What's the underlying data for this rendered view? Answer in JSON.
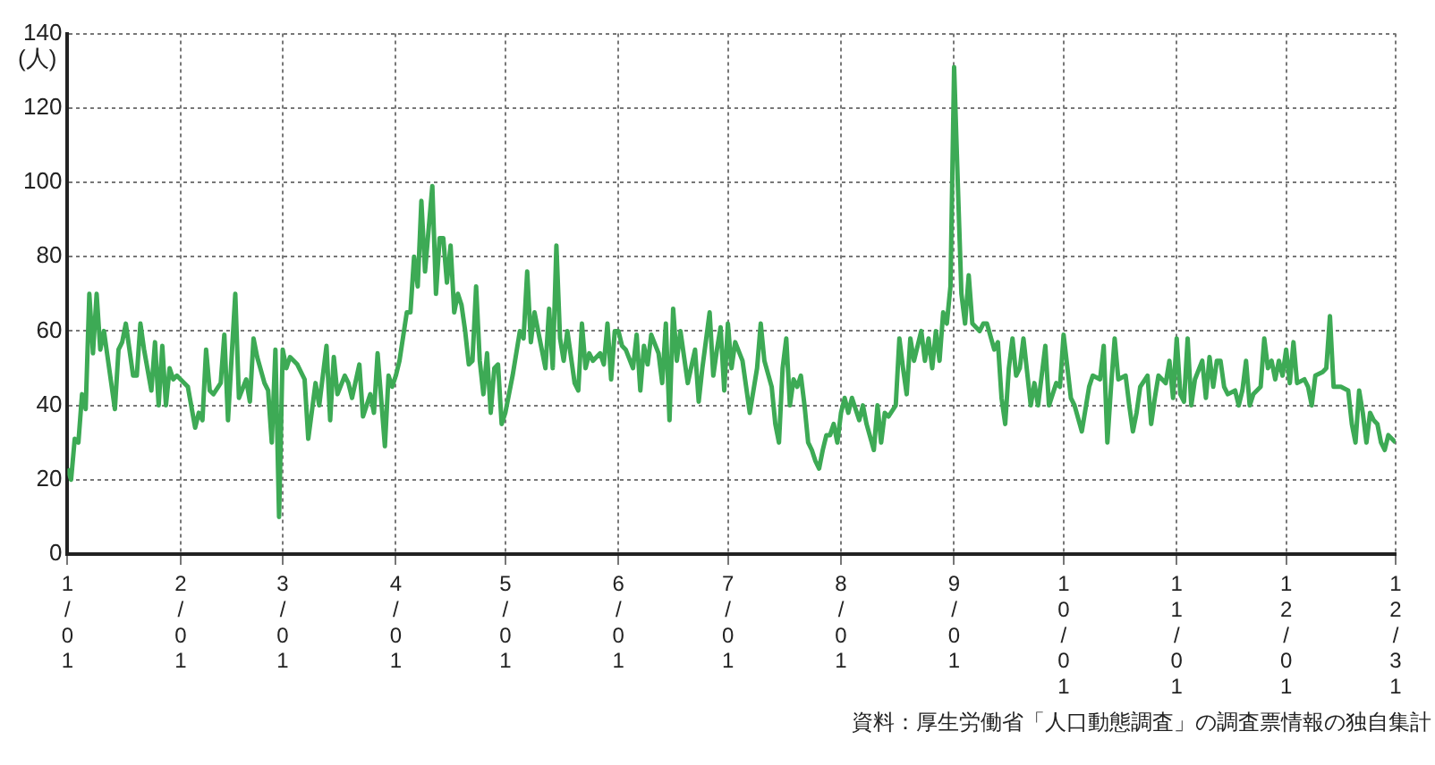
{
  "chart_data": {
    "type": "line",
    "ylabel": "(人)",
    "annotations": [
      "資料：厚生労働省「人口動態調査」の調査票情報の独自集計"
    ],
    "xlim": [
      "--01-01",
      "--12-31"
    ],
    "xticks": [
      {
        "value": "--01-01",
        "label": "1/01"
      },
      {
        "value": "--02-01",
        "label": "2/01"
      },
      {
        "value": "--03-01",
        "label": "3/01"
      },
      {
        "value": "--04-01",
        "label": "4/01"
      },
      {
        "value": "--05-01",
        "label": "5/01"
      },
      {
        "value": "--06-01",
        "label": "6/01"
      },
      {
        "value": "--07-01",
        "label": "7/01"
      },
      {
        "value": "--08-01",
        "label": "8/01"
      },
      {
        "value": "--09-01",
        "label": "9/01"
      },
      {
        "value": "--10-01",
        "label": "10/01"
      },
      {
        "value": "--11-01",
        "label": "11/01"
      },
      {
        "value": "--12-01",
        "label": "12/01"
      },
      {
        "value": "--12-31",
        "label": "12/31"
      }
    ],
    "ylim": [
      0,
      140
    ],
    "yticks": [
      0,
      20,
      40,
      60,
      80,
      100,
      120,
      140
    ],
    "grid": true,
    "legend": false,
    "marker": "none",
    "line_style": "solid",
    "series": [
      {
        "color": "#3daa55",
        "x": [
          "--01-01",
          "--01-02",
          "--01-03",
          "--01-04",
          "--01-05",
          "--01-06",
          "--01-07",
          "--01-08",
          "--01-09",
          "--01-10",
          "--01-11",
          "--01-12",
          "--01-14",
          "--01-15",
          "--01-16",
          "--01-17",
          "--01-19",
          "--01-20",
          "--01-21",
          "--01-22",
          "--01-24",
          "--01-25",
          "--01-26",
          "--01-27",
          "--01-28",
          "--01-29",
          "--01-30",
          "--01-31",
          "--02-01",
          "--02-03",
          "--02-05",
          "--02-06",
          "--02-07",
          "--02-08",
          "--02-09",
          "--02-10",
          "--02-12",
          "--02-13",
          "--02-14",
          "--02-16",
          "--02-17",
          "--02-19",
          "--02-20",
          "--02-21",
          "--02-22",
          "--02-24",
          "--02-25",
          "--02-26",
          "--02-27",
          "--02-28",
          "--03-01",
          "--03-02",
          "--03-03",
          "--03-05",
          "--03-07",
          "--03-08",
          "--03-10",
          "--03-11",
          "--03-13",
          "--03-14",
          "--03-15",
          "--03-16",
          "--03-18",
          "--03-19",
          "--03-20",
          "--03-22",
          "--03-23",
          "--03-25",
          "--03-26",
          "--03-27",
          "--03-29",
          "--03-30",
          "--03-31",
          "--04-01",
          "--04-02",
          "--04-04",
          "--04-05",
          "--04-06",
          "--04-07",
          "--04-08",
          "--04-09",
          "--04-11",
          "--04-12",
          "--04-13",
          "--04-14",
          "--04-15",
          "--04-16",
          "--04-17",
          "--04-18",
          "--04-19",
          "--04-20",
          "--04-21",
          "--04-22",
          "--04-23",
          "--04-24",
          "--04-25",
          "--04-26",
          "--04-27",
          "--04-28",
          "--04-29",
          "--04-30",
          "--05-01",
          "--05-03",
          "--05-05",
          "--05-06",
          "--05-07",
          "--05-08",
          "--05-09",
          "--05-10",
          "--05-12",
          "--05-13",
          "--05-14",
          "--05-15",
          "--05-16",
          "--05-17",
          "--05-18",
          "--05-20",
          "--05-21",
          "--05-22",
          "--05-23",
          "--05-24",
          "--05-25",
          "--05-27",
          "--05-28",
          "--05-29",
          "--05-30",
          "--05-31",
          "--06-01",
          "--06-02",
          "--06-03",
          "--06-05",
          "--06-06",
          "--06-07",
          "--06-08",
          "--06-09",
          "--06-10",
          "--06-12",
          "--06-13",
          "--06-14",
          "--06-15",
          "--06-16",
          "--06-17",
          "--06-18",
          "--06-19",
          "--06-20",
          "--06-22",
          "--06-23",
          "--06-24",
          "--06-26",
          "--06-27",
          "--06-28",
          "--06-29",
          "--06-30",
          "--07-01",
          "--07-02",
          "--07-03",
          "--07-05",
          "--07-06",
          "--07-07",
          "--07-09",
          "--07-10",
          "--07-11",
          "--07-13",
          "--07-14",
          "--07-15",
          "--07-16",
          "--07-17",
          "--07-18",
          "--07-19",
          "--07-20",
          "--07-21",
          "--07-22",
          "--07-23",
          "--07-24",
          "--07-25",
          "--07-26",
          "--07-27",
          "--07-28",
          "--07-29",
          "--07-30",
          "--07-31",
          "--08-01",
          "--08-02",
          "--08-03",
          "--08-04",
          "--08-06",
          "--08-07",
          "--08-08",
          "--08-10",
          "--08-11",
          "--08-12",
          "--08-13",
          "--08-14",
          "--08-16",
          "--08-17",
          "--08-18",
          "--08-19",
          "--08-20",
          "--08-21",
          "--08-23",
          "--08-24",
          "--08-25",
          "--08-26",
          "--08-27",
          "--08-28",
          "--08-29",
          "--08-30",
          "--08-31",
          "--09-01",
          "--09-02",
          "--09-03",
          "--09-04",
          "--09-05",
          "--09-06",
          "--09-08",
          "--09-09",
          "--09-10",
          "--09-12",
          "--09-13",
          "--09-14",
          "--09-15",
          "--09-16",
          "--09-17",
          "--09-18",
          "--09-19",
          "--09-20",
          "--09-22",
          "--09-23",
          "--09-24",
          "--09-25",
          "--09-26",
          "--09-27",
          "--09-29",
          "--09-30",
          "--10-01",
          "--10-03",
          "--10-04",
          "--10-06",
          "--10-08",
          "--10-09",
          "--10-11",
          "--10-12",
          "--10-13",
          "--10-14",
          "--10-15",
          "--10-16",
          "--10-18",
          "--10-19",
          "--10-20",
          "--10-21",
          "--10-22",
          "--10-24",
          "--10-25",
          "--10-26",
          "--10-27",
          "--10-29",
          "--10-30",
          "--10-31",
          "--11-01",
          "--11-02",
          "--11-03",
          "--11-04",
          "--11-05",
          "--11-06",
          "--11-08",
          "--11-09",
          "--11-10",
          "--11-11",
          "--11-12",
          "--11-13",
          "--11-14",
          "--11-15",
          "--11-17",
          "--11-18",
          "--11-19",
          "--11-20",
          "--11-21",
          "--11-22",
          "--11-24",
          "--11-25",
          "--11-26",
          "--11-27",
          "--11-28",
          "--11-29",
          "--11-30",
          "--12-01",
          "--12-02",
          "--12-03",
          "--12-04",
          "--12-06",
          "--12-07",
          "--12-08",
          "--12-09",
          "--12-11",
          "--12-12",
          "--12-13",
          "--12-14",
          "--12-15",
          "--12-16",
          "--12-18",
          "--12-19",
          "--12-20",
          "--12-21",
          "--12-22",
          "--12-23",
          "--12-24",
          "--12-25",
          "--12-26",
          "--12-27",
          "--12-28",
          "--12-29",
          "--12-31"
        ],
        "values": [
          23,
          20,
          31,
          30,
          43,
          39,
          70,
          54,
          70,
          55,
          60,
          53,
          39,
          55,
          57,
          62,
          48,
          48,
          62,
          55,
          44,
          57,
          40,
          56,
          40,
          50,
          47,
          48,
          47,
          45,
          34,
          38,
          36,
          55,
          44,
          43,
          46,
          59,
          36,
          70,
          42,
          47,
          41,
          58,
          53,
          46,
          44,
          30,
          55,
          10,
          55,
          50,
          53,
          51,
          47,
          31,
          46,
          40,
          56,
          36,
          53,
          43,
          48,
          46,
          42,
          51,
          37,
          43,
          38,
          54,
          29,
          48,
          45,
          48,
          52,
          65,
          65,
          80,
          72,
          95,
          76,
          99,
          70,
          85,
          85,
          73,
          83,
          65,
          70,
          67,
          60,
          51,
          52,
          72,
          52,
          43,
          54,
          38,
          50,
          51,
          35,
          38,
          48,
          60,
          58,
          76,
          57,
          65,
          60,
          50,
          66,
          50,
          83,
          58,
          52,
          60,
          46,
          44,
          62,
          50,
          54,
          52,
          54,
          51,
          62,
          47,
          60,
          60,
          56,
          55,
          50,
          59,
          44,
          56,
          51,
          59,
          54,
          46,
          62,
          36,
          66,
          52,
          60,
          53,
          46,
          55,
          41,
          50,
          65,
          48,
          55,
          61,
          44,
          62,
          50,
          57,
          52,
          45,
          38,
          50,
          62,
          52,
          45,
          35,
          30,
          50,
          58,
          40,
          47,
          45,
          48,
          40,
          30,
          28,
          25,
          23,
          28,
          32,
          32,
          35,
          30,
          38,
          42,
          38,
          42,
          36,
          40,
          35,
          28,
          40,
          30,
          38,
          37,
          40,
          58,
          50,
          43,
          58,
          52,
          60,
          52,
          58,
          50,
          60,
          52,
          65,
          62,
          72,
          131,
          100,
          70,
          62,
          75,
          62,
          60,
          62,
          62,
          55,
          57,
          42,
          35,
          50,
          58,
          48,
          50,
          58,
          40,
          46,
          40,
          48,
          56,
          40,
          46,
          45,
          59,
          42,
          40,
          33,
          45,
          48,
          47,
          56,
          30,
          45,
          58,
          47,
          48,
          40,
          33,
          38,
          45,
          48,
          35,
          42,
          48,
          46,
          52,
          42,
          58,
          43,
          41,
          58,
          40,
          47,
          52,
          42,
          53,
          45,
          52,
          52,
          45,
          43,
          44,
          40,
          44,
          52,
          40,
          43,
          45,
          58,
          50,
          52,
          47,
          52,
          48,
          55,
          46,
          57,
          46,
          47,
          45,
          40,
          48,
          49,
          50,
          64,
          45,
          45,
          45,
          44,
          35,
          30,
          44,
          38,
          30,
          38,
          36,
          35,
          30,
          28,
          32,
          30
        ]
      }
    ]
  }
}
